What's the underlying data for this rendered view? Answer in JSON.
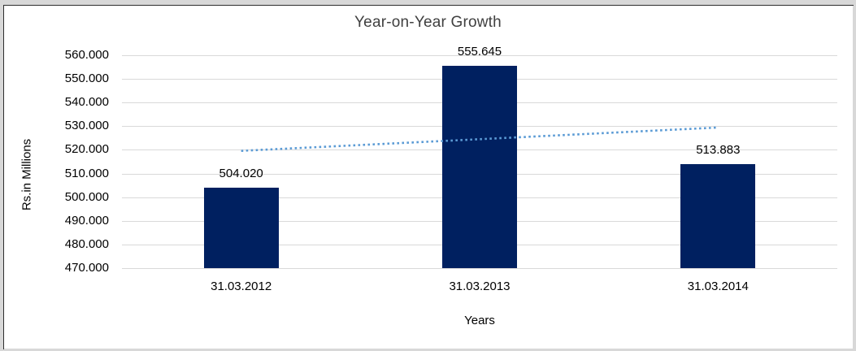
{
  "chart_data": {
    "type": "bar",
    "title": "Year-on-Year Growth",
    "categories": [
      "31.03.2012",
      "31.03.2013",
      "31.03.2014"
    ],
    "values": [
      504.02,
      555.645,
      513.883
    ],
    "value_labels": [
      "504.020",
      "555.645",
      "513.883"
    ],
    "xlabel": "Years",
    "ylabel": "Rs.in Millions",
    "ylim": [
      470,
      560
    ],
    "ytick_step": 10,
    "ytick_labels": [
      "470.000",
      "480.000",
      "490.000",
      "500.000",
      "510.000",
      "520.000",
      "530.000",
      "540.000",
      "550.000",
      "560.000"
    ],
    "grid": true,
    "legend": "none",
    "bar_color": "#002060",
    "gridline_color": "#d9d9d9",
    "title_color": "#404040",
    "trendline": {
      "type": "linear",
      "style": "dotted",
      "color": "#5b9bd5",
      "start_value": 519.583,
      "end_value": 529.449
    }
  }
}
